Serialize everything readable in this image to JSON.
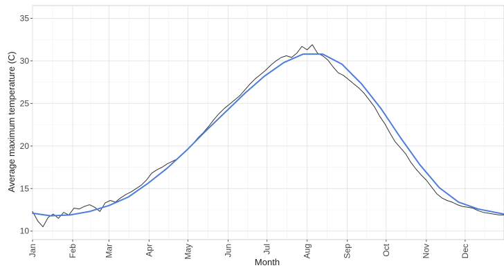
{
  "chart_data": {
    "type": "line",
    "title": "",
    "xlabel": "Month",
    "ylabel": "Average maximum temperature (C)",
    "x_ticks": [
      "Jan",
      "Feb",
      "Mar",
      "Apr",
      "May",
      "Jun",
      "Jul",
      "Aug",
      "Sep",
      "Oct",
      "Nov",
      "Dec"
    ],
    "y_ticks": [
      10,
      15,
      20,
      25,
      30,
      35
    ],
    "ylim": [
      9,
      36.5
    ],
    "grid": true,
    "legend": "none",
    "series": [
      {
        "color": "#333333",
        "style": "daily",
        "x": [
          1,
          5,
          9,
          13,
          17,
          21,
          25,
          29,
          33,
          37,
          41,
          45,
          49,
          53,
          57,
          61,
          65,
          69,
          73,
          77,
          81,
          85,
          89,
          93,
          97,
          101,
          105,
          109,
          113,
          117,
          121,
          125,
          129,
          133,
          137,
          141,
          145,
          149,
          153,
          157,
          161,
          165,
          169,
          173,
          177,
          181,
          185,
          189,
          193,
          197,
          201,
          205,
          209,
          213,
          217,
          221,
          225,
          229,
          233,
          237,
          241,
          245,
          249,
          253,
          257,
          261,
          265,
          269,
          273,
          277,
          281,
          285,
          289,
          293,
          297,
          301,
          305,
          309,
          313,
          317,
          321,
          325,
          329,
          333,
          337,
          341,
          345,
          349,
          353,
          357,
          361,
          365
        ],
        "y": [
          12.3,
          11.2,
          10.5,
          11.6,
          12.0,
          11.5,
          12.2,
          11.9,
          12.7,
          12.6,
          12.9,
          13.1,
          12.8,
          12.3,
          13.3,
          13.6,
          13.4,
          13.9,
          14.3,
          14.6,
          15.0,
          15.4,
          16.0,
          16.8,
          17.2,
          17.5,
          17.9,
          18.2,
          18.5,
          19.1,
          19.6,
          20.3,
          21.0,
          21.6,
          22.3,
          23.1,
          23.8,
          24.4,
          24.9,
          25.4,
          25.9,
          26.6,
          27.3,
          27.9,
          28.4,
          28.9,
          29.5,
          30.0,
          30.4,
          30.6,
          30.4,
          30.9,
          31.7,
          31.3,
          31.9,
          30.9,
          30.6,
          30.1,
          29.3,
          28.6,
          28.3,
          27.8,
          27.3,
          26.8,
          26.2,
          25.4,
          24.6,
          23.5,
          22.6,
          21.5,
          20.5,
          19.8,
          19.1,
          18.1,
          17.3,
          16.6,
          16.0,
          15.2,
          14.4,
          13.9,
          13.6,
          13.4,
          13.1,
          12.9,
          12.8,
          12.7,
          12.4,
          12.2,
          12.1,
          12.0,
          11.9,
          11.9
        ]
      },
      {
        "color": "#4e7dd9",
        "style": "smooth",
        "x": [
          1,
          15,
          30,
          45,
          60,
          75,
          90,
          105,
          120,
          135,
          150,
          165,
          180,
          195,
          210,
          225,
          240,
          255,
          270,
          285,
          300,
          315,
          330,
          345,
          365
        ],
        "y": [
          12.1,
          11.8,
          11.9,
          12.3,
          13.0,
          14.0,
          15.6,
          17.4,
          19.5,
          21.8,
          24.0,
          26.2,
          28.2,
          29.8,
          30.8,
          30.8,
          29.6,
          27.3,
          24.4,
          21.0,
          17.8,
          15.1,
          13.4,
          12.6,
          12.0
        ]
      }
    ]
  }
}
